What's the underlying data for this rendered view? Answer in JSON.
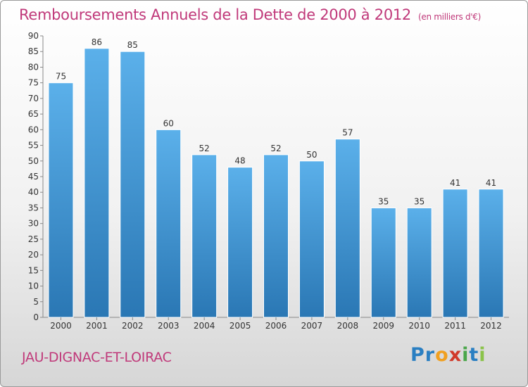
{
  "title": "Remboursements Annuels de la Dette de 2000 à 2012",
  "unit": "(en milliers d'€)",
  "commune": "JAU-DIGNAC-ET-LOIRAC",
  "logo": "Proxiti",
  "colors": {
    "title": "#c0397a",
    "bar_top": "#5bb0ea",
    "bar_bottom": "#2a77b4"
  },
  "chart_data": {
    "type": "bar",
    "categories": [
      "2000",
      "2001",
      "2002",
      "2003",
      "2004",
      "2005",
      "2006",
      "2007",
      "2008",
      "2009",
      "2010",
      "2011",
      "2012"
    ],
    "values": [
      75,
      86,
      85,
      60,
      52,
      48,
      52,
      50,
      57,
      35,
      35,
      41,
      41
    ],
    "ylim": [
      0,
      90
    ],
    "yticks": [
      0,
      5,
      10,
      15,
      20,
      25,
      30,
      35,
      40,
      45,
      50,
      55,
      60,
      65,
      70,
      75,
      80,
      85,
      90
    ],
    "grid": false,
    "data_labels": true
  }
}
